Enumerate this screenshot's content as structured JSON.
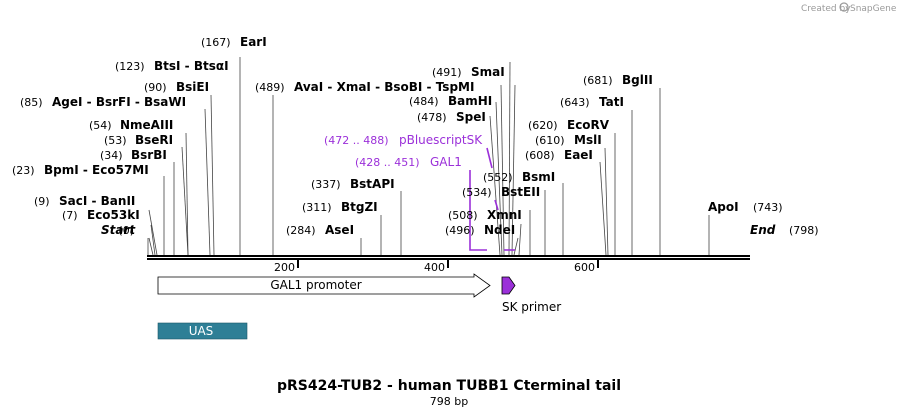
{
  "credit": {
    "prefix": "Created by",
    "brand": "SnapGene"
  },
  "title": "pRS424-TUB2 - human TUBB1 Cterminal tail",
  "length_label": "798 bp",
  "sequence_length": 798,
  "ticks": [
    "200",
    "400",
    "600"
  ],
  "ends": {
    "start": {
      "pos": "(0)",
      "name": "Start"
    },
    "end": {
      "pos": "(798)",
      "name": "End"
    }
  },
  "sites": [
    {
      "pos": "(7)",
      "name": "Eco53kI",
      "bp": 7
    },
    {
      "pos": "(9)",
      "name": "SacI  - BanII",
      "bp": 9
    },
    {
      "pos": "(23)",
      "name": "BpmI  - Eco57MI",
      "bp": 23
    },
    {
      "pos": "(34)",
      "name": "BsrBI",
      "bp": 34
    },
    {
      "pos": "(53)",
      "name": "BseRI",
      "bp": 53
    },
    {
      "pos": "(54)",
      "name": "NmeAIII",
      "bp": 54
    },
    {
      "pos": "(85)",
      "name": "AgeI  - BsrFI  - BsaWI",
      "bp": 85
    },
    {
      "pos": "(90)",
      "name": "BsiEI",
      "bp": 90
    },
    {
      "pos": "(123)",
      "name": "BtsI  - BtsαI",
      "bp": 123
    },
    {
      "pos": "(167)",
      "name": "EarI",
      "bp": 167
    },
    {
      "pos": "(489)",
      "name": "AvaI  - XmaI  - BsoBI  - TspMI",
      "bp": 489
    },
    {
      "pos": "(284)",
      "name": "AseI",
      "bp": 284
    },
    {
      "pos": "(311)",
      "name": "BtgZI",
      "bp": 311
    },
    {
      "pos": "(337)",
      "name": "BstAPI",
      "bp": 337
    },
    {
      "pos": "(496)",
      "name": "NdeI",
      "bp": 496
    },
    {
      "pos": "(508)",
      "name": "XmnI",
      "bp": 508
    },
    {
      "pos": "(534)",
      "name": "BstEII",
      "bp": 534
    },
    {
      "pos": "(552)",
      "name": "BsmI",
      "bp": 552
    },
    {
      "pos": "(478)",
      "name": "SpeI",
      "bp": 478
    },
    {
      "pos": "(484)",
      "name": "BamHI",
      "bp": 484
    },
    {
      "pos": "(491)",
      "name": "SmaI",
      "bp": 491
    },
    {
      "pos": "(608)",
      "name": "EaeI",
      "bp": 608
    },
    {
      "pos": "(610)",
      "name": "MslI",
      "bp": 610
    },
    {
      "pos": "(620)",
      "name": "EcoRV",
      "bp": 620
    },
    {
      "pos": "(643)",
      "name": "TatI",
      "bp": 643
    },
    {
      "pos": "(681)",
      "name": "BglII",
      "bp": 681
    },
    {
      "pos": "(743)",
      "name": "ApoI",
      "bp": 743
    }
  ],
  "primer_binding": [
    {
      "pos": "(472 .. 488)",
      "name": "pBluescriptSK",
      "start": 472,
      "end": 488
    },
    {
      "pos": "(428 .. 451)",
      "name": "GAL1",
      "start": 428,
      "end": 451
    }
  ],
  "features": {
    "promoter": {
      "label": "GAL1 promoter",
      "start": 12,
      "end": 456
    },
    "primer": {
      "label": "SK primer",
      "start": 472,
      "end": 488,
      "color": "#9b30d9"
    },
    "uas": {
      "label": "UAS",
      "start": 12,
      "end": 130,
      "color": "#2e7f96"
    }
  },
  "colors": {
    "backbone": "#000000",
    "primer": "#9b30d9",
    "uas": "#2e7f96"
  }
}
